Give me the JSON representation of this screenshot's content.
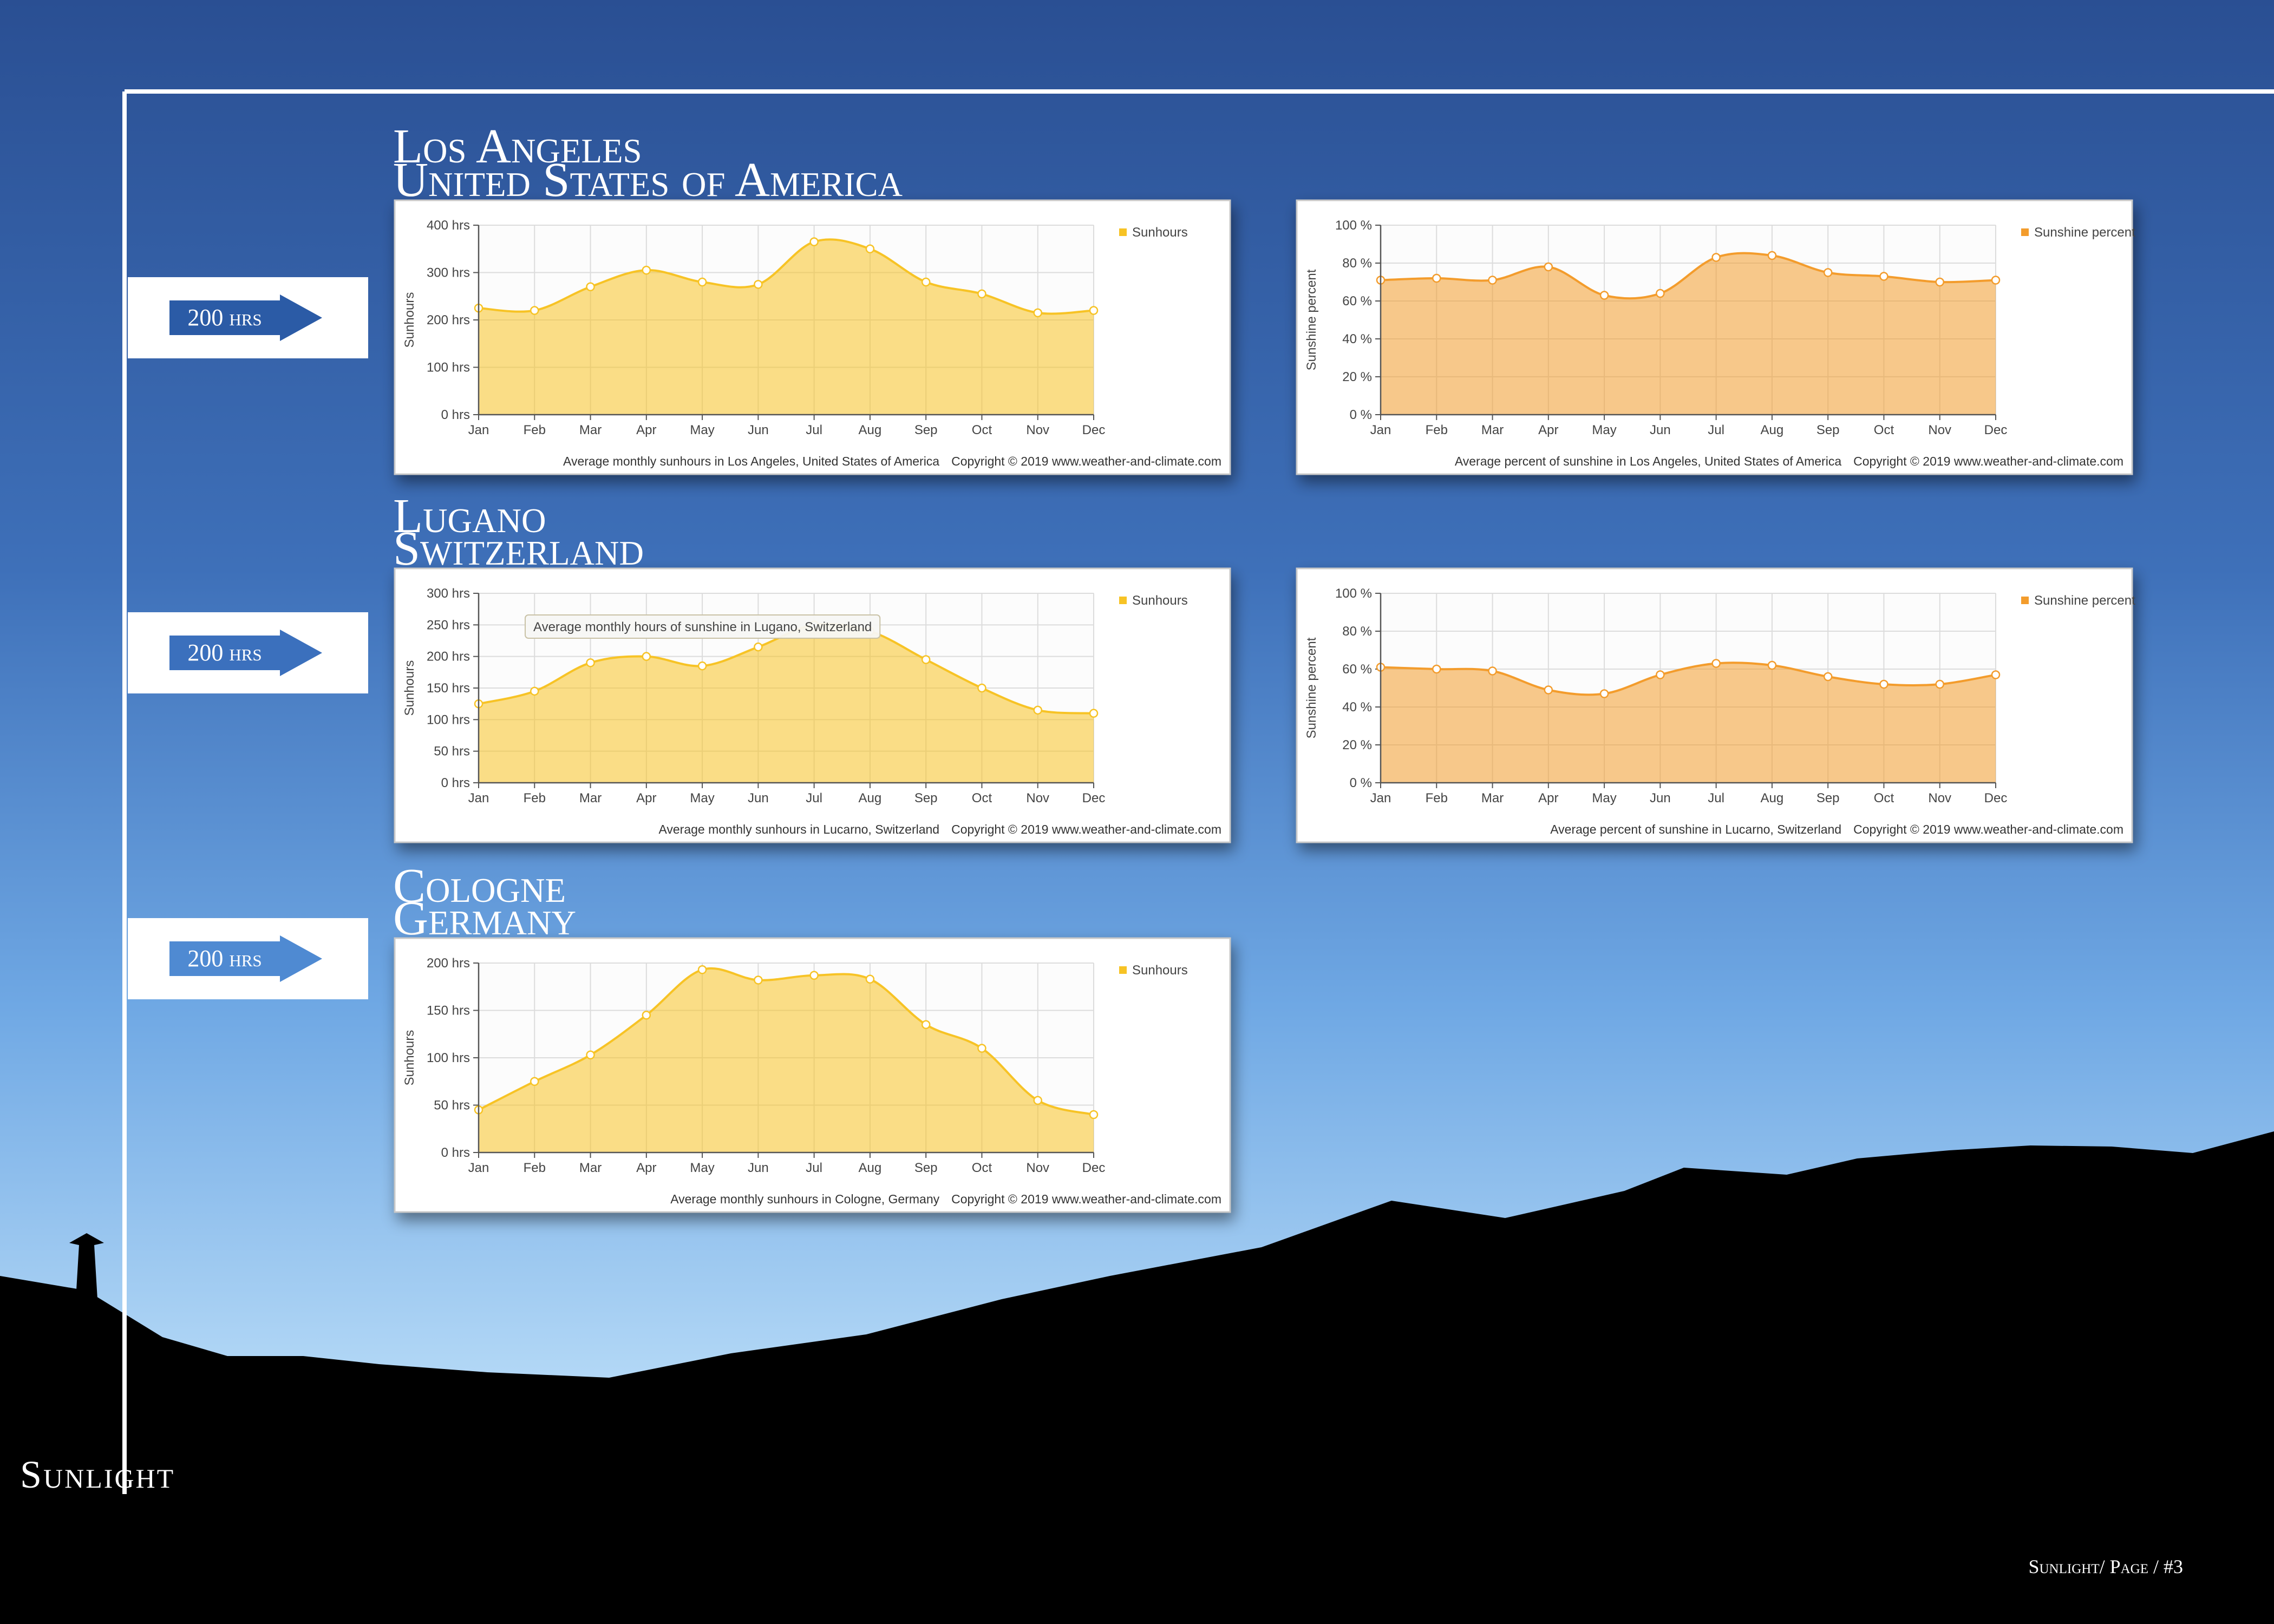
{
  "sections": [
    {
      "city": "Los Angeles",
      "country": "United States of America",
      "marker": "200 hrs"
    },
    {
      "city": "Lugano",
      "country": "Switzerland",
      "marker": "200 hrs"
    },
    {
      "city": "Cologne",
      "country": "Germany",
      "marker": "200 hrs"
    }
  ],
  "side_label": "Sunlight",
  "footer": "Sunlight/ Page / #3",
  "chart_data": [
    {
      "type": "area",
      "ylabel": "Sunhours",
      "grid": true,
      "legend": "top-right",
      "categories": [
        "Jan",
        "Feb",
        "Mar",
        "Apr",
        "May",
        "Jun",
        "Jul",
        "Aug",
        "Sep",
        "Oct",
        "Nov",
        "Dec"
      ],
      "series": [
        {
          "name": "Sunhours",
          "color": "#f7c325",
          "values": [
            225,
            220,
            270,
            305,
            280,
            275,
            365,
            350,
            280,
            255,
            215,
            220
          ]
        }
      ],
      "ylim": [
        0,
        400
      ],
      "yticks": [
        {
          "value": 0,
          "label": "0 hrs"
        },
        {
          "value": 100,
          "label": "100 hrs"
        },
        {
          "value": 200,
          "label": "200 hrs"
        },
        {
          "value": 300,
          "label": "300 hrs"
        },
        {
          "value": 400,
          "label": "400 hrs"
        }
      ],
      "caption": "Average monthly sunhours in Los Angeles, United States of America",
      "credit": "Copyright © 2019 www.weather-and-climate.com"
    },
    {
      "type": "area",
      "ylabel": "Sunshine percent",
      "grid": true,
      "legend": "top-right",
      "categories": [
        "Jan",
        "Feb",
        "Mar",
        "Apr",
        "May",
        "Jun",
        "Jul",
        "Aug",
        "Sep",
        "Oct",
        "Nov",
        "Dec"
      ],
      "series": [
        {
          "name": "Sunshine percent",
          "color": "#f39c2c",
          "values": [
            71,
            72,
            71,
            78,
            63,
            64,
            83,
            84,
            75,
            73,
            70,
            71
          ]
        }
      ],
      "ylim": [
        0,
        100
      ],
      "yticks": [
        {
          "value": 0,
          "label": "0 %"
        },
        {
          "value": 20,
          "label": "20 %"
        },
        {
          "value": 40,
          "label": "40 %"
        },
        {
          "value": 60,
          "label": "60 %"
        },
        {
          "value": 80,
          "label": "80 %"
        },
        {
          "value": 100,
          "label": "100 %"
        }
      ],
      "caption": "Average percent of sunshine in Los Angeles, United States of America",
      "credit": "Copyright © 2019 www.weather-and-climate.com"
    },
    {
      "type": "area",
      "ylabel": "Sunhours",
      "grid": true,
      "legend": "top-right",
      "categories": [
        "Jan",
        "Feb",
        "Mar",
        "Apr",
        "May",
        "Jun",
        "Jul",
        "Aug",
        "Sep",
        "Oct",
        "Nov",
        "Dec"
      ],
      "series": [
        {
          "name": "Sunhours",
          "color": "#f7c325",
          "values": [
            125,
            145,
            190,
            200,
            185,
            215,
            250,
            240,
            195,
            150,
            115,
            110
          ]
        }
      ],
      "ylim": [
        0,
        300
      ],
      "yticks": [
        {
          "value": 0,
          "label": "0 hrs"
        },
        {
          "value": 50,
          "label": "50 hrs"
        },
        {
          "value": 100,
          "label": "100 hrs"
        },
        {
          "value": 150,
          "label": "150 hrs"
        },
        {
          "value": 200,
          "label": "200 hrs"
        },
        {
          "value": 250,
          "label": "250 hrs"
        },
        {
          "value": 300,
          "label": "300 hrs"
        }
      ],
      "tooltip": "Average monthly hours of sunshine in Lugano, Switzerland",
      "caption": "Average monthly sunhours in Lucarno, Switzerland",
      "credit": "Copyright © 2019 www.weather-and-climate.com"
    },
    {
      "type": "area",
      "ylabel": "Sunshine percent",
      "grid": true,
      "legend": "top-right",
      "categories": [
        "Jan",
        "Feb",
        "Mar",
        "Apr",
        "May",
        "Jun",
        "Jul",
        "Aug",
        "Sep",
        "Oct",
        "Nov",
        "Dec"
      ],
      "series": [
        {
          "name": "Sunshine percent",
          "color": "#f39c2c",
          "values": [
            61,
            60,
            59,
            49,
            47,
            57,
            63,
            62,
            56,
            52,
            52,
            57
          ]
        }
      ],
      "ylim": [
        0,
        100
      ],
      "yticks": [
        {
          "value": 0,
          "label": "0 %"
        },
        {
          "value": 20,
          "label": "20 %"
        },
        {
          "value": 40,
          "label": "40 %"
        },
        {
          "value": 60,
          "label": "60 %"
        },
        {
          "value": 80,
          "label": "80 %"
        },
        {
          "value": 100,
          "label": "100 %"
        }
      ],
      "caption": "Average percent of sunshine in Lucarno, Switzerland",
      "credit": "Copyright © 2019 www.weather-and-climate.com"
    },
    {
      "type": "area",
      "ylabel": "Sunhours",
      "grid": true,
      "legend": "top-right",
      "categories": [
        "Jan",
        "Feb",
        "Mar",
        "Apr",
        "May",
        "Jun",
        "Jul",
        "Aug",
        "Sep",
        "Oct",
        "Nov",
        "Dec"
      ],
      "series": [
        {
          "name": "Sunhours",
          "color": "#f7c325",
          "values": [
            45,
            75,
            103,
            145,
            193,
            182,
            187,
            183,
            135,
            110,
            55,
            40
          ]
        }
      ],
      "ylim": [
        0,
        200
      ],
      "yticks": [
        {
          "value": 0,
          "label": "0 hrs"
        },
        {
          "value": 50,
          "label": "50 hrs"
        },
        {
          "value": 100,
          "label": "100 hrs"
        },
        {
          "value": 150,
          "label": "150 hrs"
        },
        {
          "value": 200,
          "label": "200 hrs"
        }
      ],
      "caption": "Average monthly sunhours in Cologne, Germany",
      "credit": "Copyright © 2019 www.weather-and-climate.com"
    }
  ]
}
